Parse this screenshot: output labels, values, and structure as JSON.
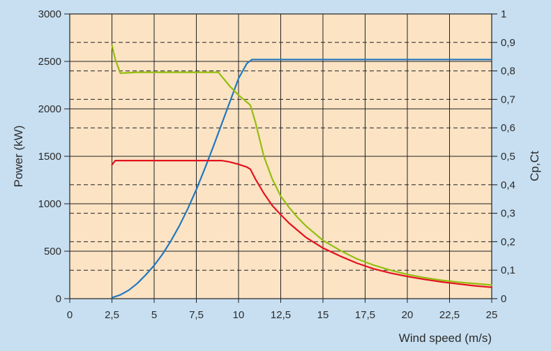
{
  "chart_data": {
    "type": "line",
    "xlabel": "Wind speed (m/s)",
    "ylabel_left": "Power (kW)",
    "ylabel_right": "Cp,Ct",
    "xlim": [
      0,
      25
    ],
    "ylim_left": [
      0,
      3000
    ],
    "ylim_right": [
      0,
      1
    ],
    "x_ticks": [
      "0",
      "2,5",
      "5",
      "7,5",
      "10",
      "12,5",
      "15",
      "17,5",
      "20",
      "22,5",
      "25"
    ],
    "y_left_ticks": [
      "0",
      "500",
      "1000",
      "1500",
      "2000",
      "2500",
      "3000"
    ],
    "y_right_ticks": [
      "0",
      "0,1",
      "0,2",
      "0,3",
      "0,4",
      "0,5",
      "0,6",
      "0,7",
      "0,8",
      "0,9",
      "1"
    ],
    "grid": "solid at left-axis ticks, dashed at right-axis ticks",
    "colors": {
      "plot_background": "#fbe3c4",
      "page_background": "#c7dff1",
      "grid": "#222222"
    },
    "series": [
      {
        "color": "#1f78c1",
        "axis": "left",
        "x": [
          2.5,
          3,
          3.5,
          4,
          4.5,
          5,
          5.5,
          6,
          6.5,
          7,
          7.5,
          8,
          8.5,
          9,
          9.5,
          10,
          10.5,
          10.8,
          11,
          12,
          13,
          14,
          15,
          16,
          17,
          18,
          19,
          20,
          21,
          22,
          23,
          24,
          25
        ],
        "values": [
          10,
          40,
          90,
          160,
          250,
          350,
          470,
          610,
          770,
          950,
          1150,
          1370,
          1600,
          1840,
          2080,
          2320,
          2480,
          2520,
          2520,
          2520,
          2520,
          2520,
          2520,
          2520,
          2520,
          2520,
          2520,
          2520,
          2520,
          2520,
          2520,
          2520,
          2520
        ]
      },
      {
        "color": "#e3121c",
        "axis": "right",
        "x": [
          2.5,
          2.7,
          3,
          4,
          5,
          6,
          7,
          8,
          8.5,
          9,
          9.5,
          10,
          10.5,
          10.7,
          11,
          11.5,
          12,
          12.5,
          13,
          13.5,
          14,
          15,
          16,
          17,
          18,
          19,
          20,
          21,
          22,
          23,
          24,
          25
        ],
        "values": [
          0.47,
          0.485,
          0.485,
          0.485,
          0.485,
          0.485,
          0.485,
          0.485,
          0.485,
          0.485,
          0.48,
          0.472,
          0.462,
          0.455,
          0.42,
          0.37,
          0.327,
          0.295,
          0.265,
          0.24,
          0.215,
          0.178,
          0.15,
          0.125,
          0.105,
          0.09,
          0.078,
          0.068,
          0.059,
          0.052,
          0.045,
          0.04
        ]
      },
      {
        "color": "#94be0d",
        "axis": "right",
        "x": [
          2.5,
          2.7,
          3,
          4,
          5,
          6,
          7,
          8,
          8.8,
          9.5,
          10,
          10.5,
          10.7,
          11,
          11.5,
          12,
          12.5,
          13,
          13.5,
          14,
          15,
          16,
          17,
          18,
          19,
          20,
          21,
          22,
          23,
          24,
          25
        ],
        "values": [
          0.89,
          0.84,
          0.792,
          0.795,
          0.795,
          0.795,
          0.795,
          0.795,
          0.795,
          0.745,
          0.715,
          0.69,
          0.68,
          0.62,
          0.5,
          0.42,
          0.36,
          0.32,
          0.285,
          0.255,
          0.205,
          0.17,
          0.14,
          0.118,
          0.1,
          0.085,
          0.074,
          0.065,
          0.058,
          0.053,
          0.048
        ]
      }
    ]
  }
}
